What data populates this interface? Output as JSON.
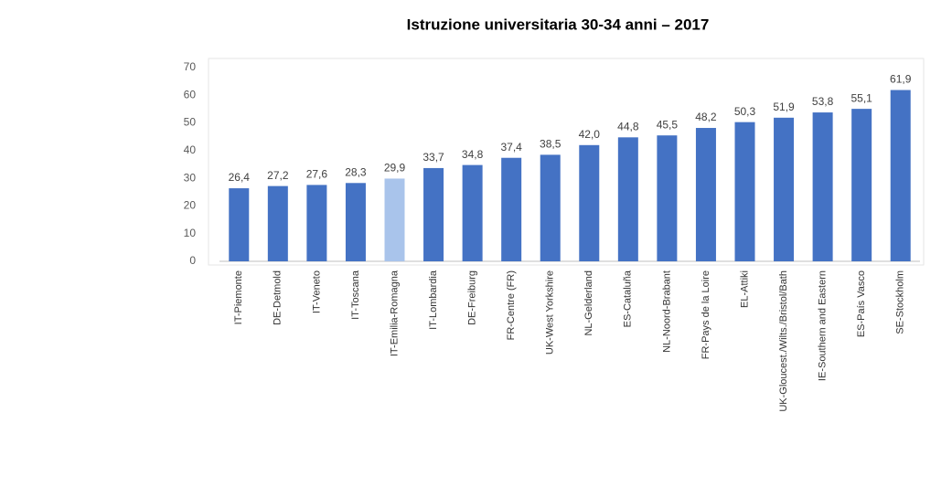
{
  "chart_data": {
    "type": "bar",
    "title": "Istruzione universitaria 30-34 anni – 2017",
    "categories": [
      "IT-Piemonte",
      "DE-Detmold",
      "IT-Veneto",
      "IT-Toscana",
      "IT-Emilia-Romagna",
      "IT-Lombardia",
      "DE-Freiburg",
      "FR-Centre (FR)",
      "UK-West Yorkshire",
      "NL-Gelderland",
      "ES-Cataluña",
      "NL-Noord-Brabant",
      "FR-Pays de la Loire",
      "EL-Attiki",
      "UK-Gloucest./Wilts./Bristol/Bath",
      "IE-Southern and Eastern",
      "ES-País Vasco",
      "SE-Stockholm"
    ],
    "values": [
      26.4,
      27.2,
      27.6,
      28.3,
      29.9,
      33.7,
      34.8,
      37.4,
      38.5,
      42.0,
      44.8,
      45.5,
      48.2,
      50.3,
      51.9,
      53.8,
      55.1,
      61.9
    ],
    "value_labels": [
      "26,4",
      "27,2",
      "27,6",
      "28,3",
      "29,9",
      "33,7",
      "34,8",
      "37,4",
      "38,5",
      "42,0",
      "44,8",
      "45,5",
      "48,2",
      "50,3",
      "51,9",
      "53,8",
      "55,1",
      "61,9"
    ],
    "colors": [
      "#4472c4",
      "#4472c4",
      "#4472c4",
      "#4472c4",
      "#a9c4eb",
      "#4472c4",
      "#4472c4",
      "#4472c4",
      "#4472c4",
      "#4472c4",
      "#4472c4",
      "#4472c4",
      "#4472c4",
      "#4472c4",
      "#4472c4",
      "#4472c4",
      "#4472c4",
      "#4472c4"
    ],
    "ylim": [
      0,
      70
    ],
    "yticks": [
      0,
      10,
      20,
      30,
      40,
      50,
      60,
      70
    ],
    "grid": false
  }
}
